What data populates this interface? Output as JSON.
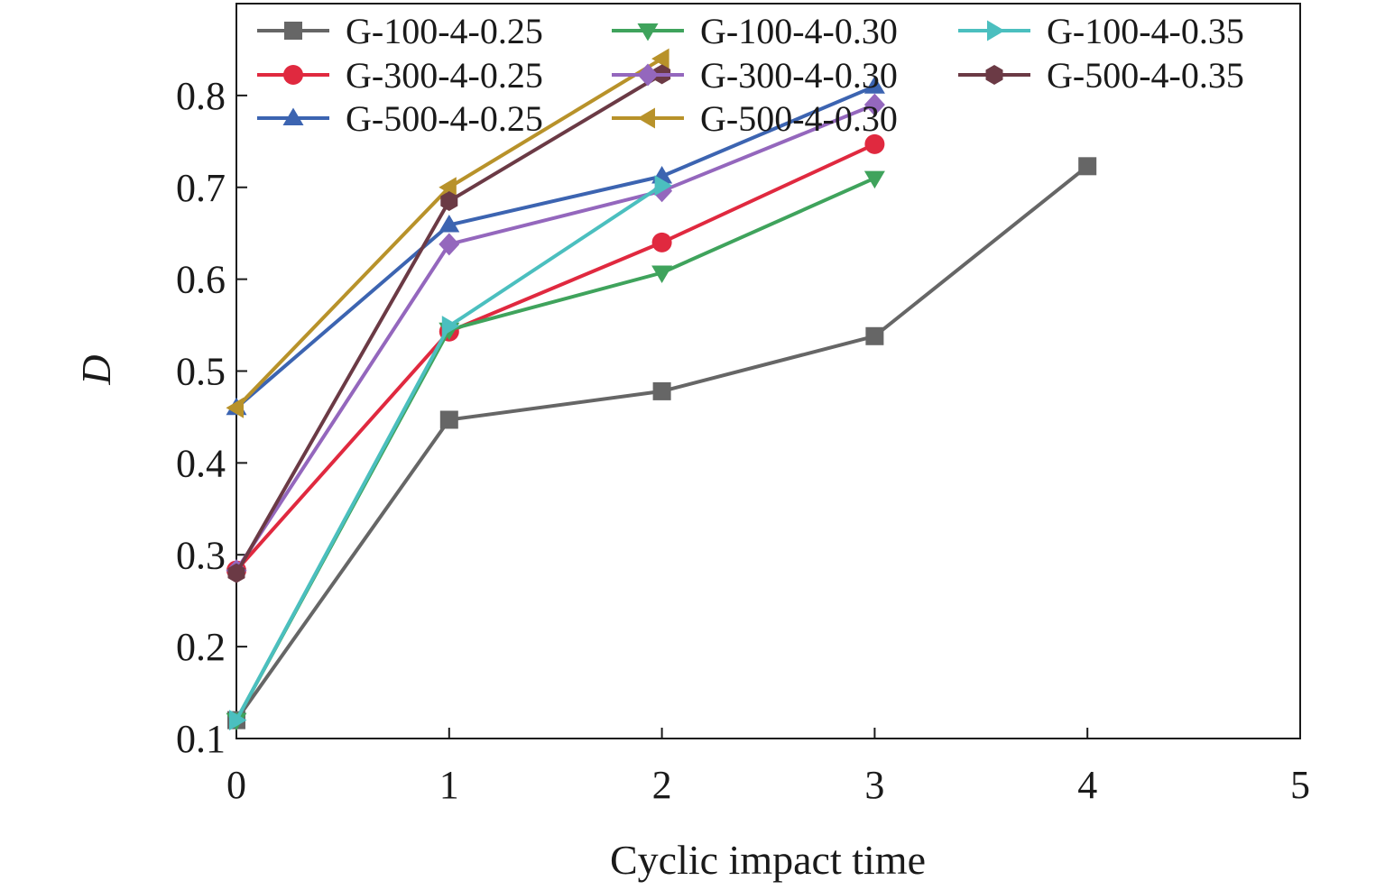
{
  "chart_data": {
    "type": "line",
    "xlabel": "Cyclic impact time",
    "ylabel": "D",
    "xlim": [
      0,
      5
    ],
    "ylim": [
      0.1,
      0.9
    ],
    "xticks": [
      "0",
      "1",
      "2",
      "3",
      "4",
      "5"
    ],
    "yticks": [
      "0.1",
      "0.2",
      "0.3",
      "0.4",
      "0.5",
      "0.6",
      "0.7",
      "0.8"
    ],
    "grid": false,
    "legend_position": "top",
    "series": [
      {
        "name": "G-100-4-0.25",
        "color": "#666666",
        "marker": "square",
        "x": [
          0,
          1,
          2,
          3,
          4
        ],
        "values": [
          0.12,
          0.447,
          0.478,
          0.538,
          0.723
        ]
      },
      {
        "name": "G-300-4-0.25",
        "color": "#e0293f",
        "marker": "circle",
        "x": [
          0,
          1,
          2,
          3
        ],
        "values": [
          0.283,
          0.543,
          0.64,
          0.747
        ]
      },
      {
        "name": "G-500-4-0.25",
        "color": "#3c64b1",
        "marker": "triangle-up",
        "x": [
          0,
          1,
          2,
          3
        ],
        "values": [
          0.46,
          0.659,
          0.712,
          0.81
        ]
      },
      {
        "name": "G-100-4-0.30",
        "color": "#3fa35c",
        "marker": "triangle-down",
        "x": [
          0,
          1,
          2,
          3
        ],
        "values": [
          0.12,
          0.545,
          0.607,
          0.71
        ]
      },
      {
        "name": "G-300-4-0.30",
        "color": "#9467bd",
        "marker": "diamond",
        "x": [
          0,
          1,
          2,
          3
        ],
        "values": [
          0.283,
          0.638,
          0.696,
          0.79
        ]
      },
      {
        "name": "G-500-4-0.30",
        "color": "#b8922a",
        "marker": "triangle-left",
        "x": [
          0,
          1,
          2
        ],
        "values": [
          0.46,
          0.7,
          0.84
        ]
      },
      {
        "name": "G-100-4-0.35",
        "color": "#4bbfbf",
        "marker": "triangle-right",
        "x": [
          0,
          1,
          2
        ],
        "values": [
          0.12,
          0.549,
          0.702
        ]
      },
      {
        "name": "G-500-4-0.35",
        "color": "#6b3a45",
        "marker": "hexagon",
        "x": [
          0,
          1,
          2
        ],
        "values": [
          0.28,
          0.685,
          0.823
        ]
      }
    ]
  }
}
